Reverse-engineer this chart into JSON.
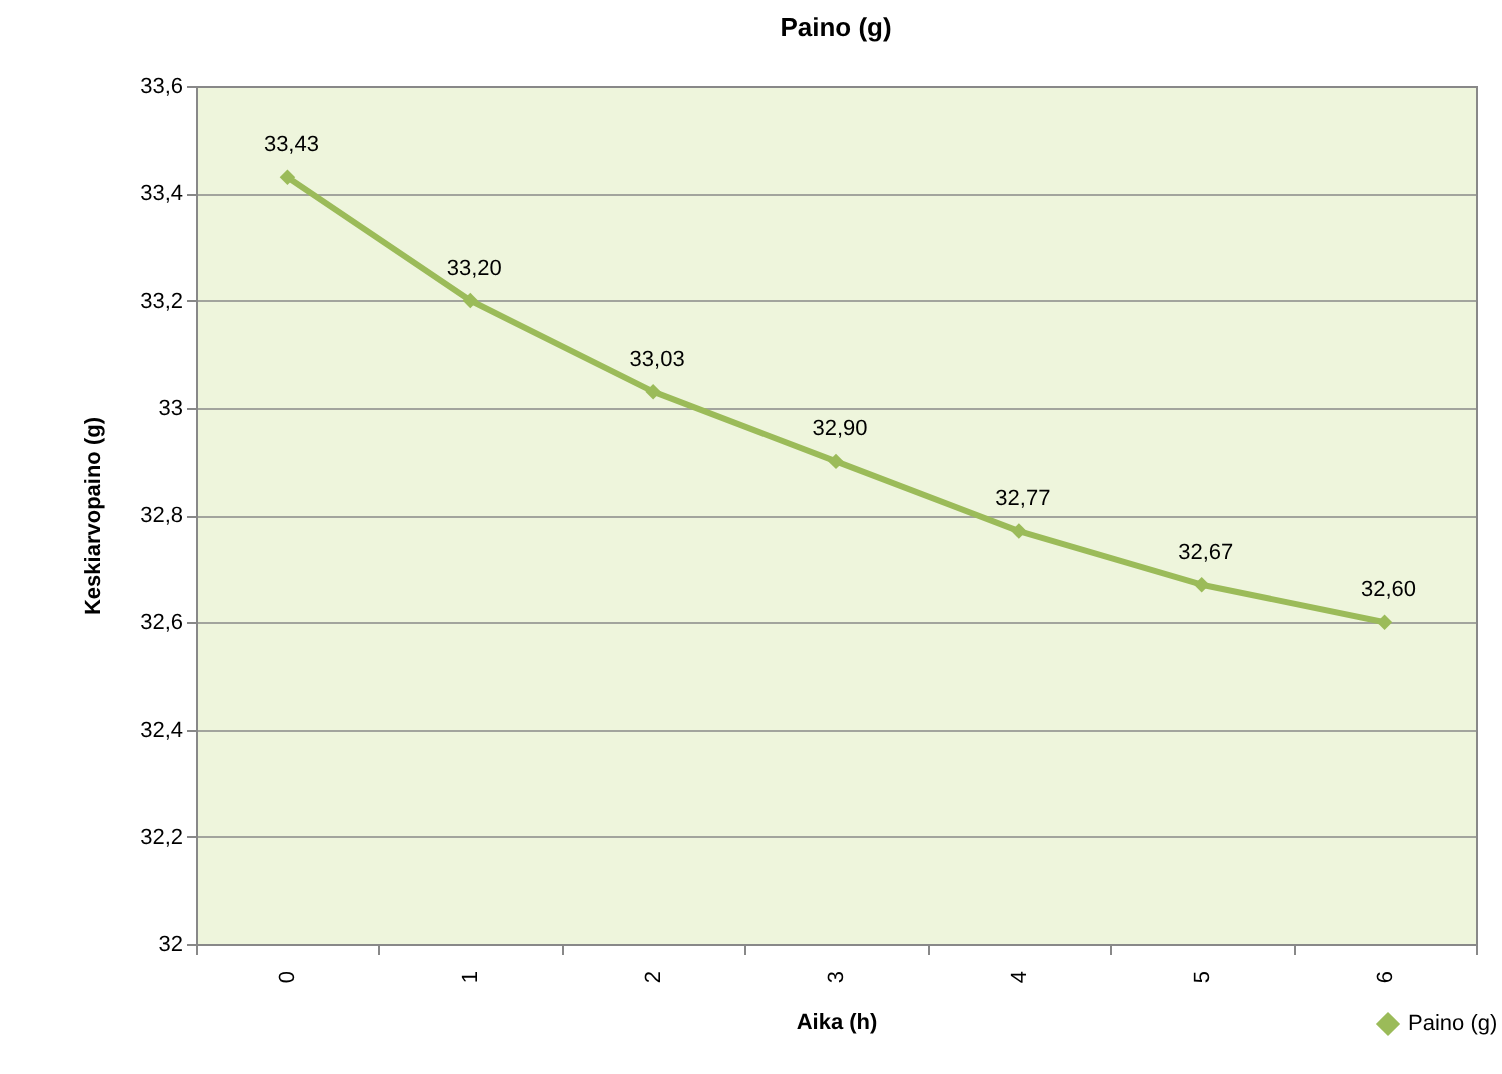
{
  "chart_data": {
    "type": "line",
    "title": "Paino (g)",
    "xlabel": "Aika (h)",
    "ylabel": "Keskiarvopaino (g)",
    "categories": [
      "0",
      "1",
      "2",
      "3",
      "4",
      "5",
      "6"
    ],
    "series": [
      {
        "name": "Paino (g)",
        "color": "#9bbb59",
        "values": [
          33.43,
          33.2,
          33.03,
          32.9,
          32.77,
          32.67,
          32.6
        ],
        "value_labels": [
          "33,43",
          "33,20",
          "33,03",
          "32,90",
          "32,77",
          "32,67",
          "32,60"
        ]
      }
    ],
    "ylim": [
      32,
      33.6
    ],
    "yticks": [
      32,
      {
        "value": 32.2,
        "label": "32,2"
      },
      {
        "value": 32.4,
        "label": "32,4"
      },
      {
        "value": 32.6,
        "label": "32,6"
      },
      {
        "value": 32.8,
        "label": "32,8"
      },
      33,
      {
        "value": 33.2,
        "label": "33,2"
      },
      {
        "value": 33.4,
        "label": "33,4"
      },
      {
        "value": 33.6,
        "label": "33,6"
      }
    ],
    "grid": "y",
    "legend": "bottom right",
    "marker": "diamond",
    "line_style": "solid"
  }
}
